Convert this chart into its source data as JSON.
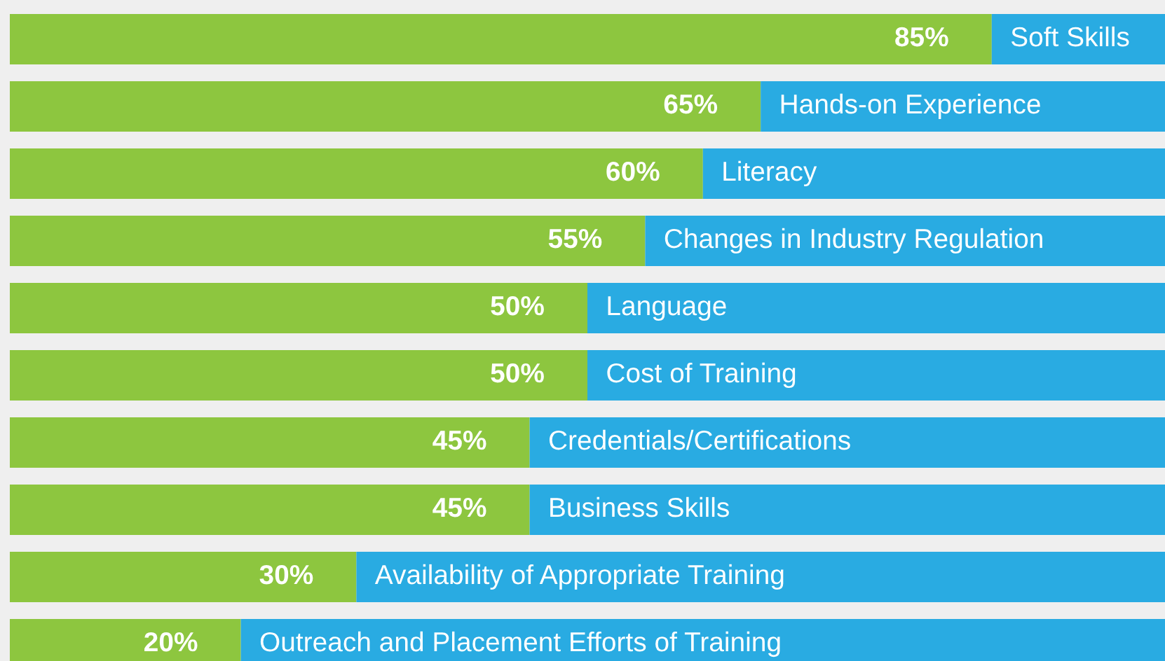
{
  "chart_data": {
    "type": "bar",
    "orientation": "horizontal",
    "stacked": true,
    "categories": [
      "Soft Skills",
      "Hands-on Experience",
      "Literacy",
      "Changes in Industry Regulation",
      "Language",
      "Cost of Training",
      "Credentials/Certifications",
      "Business Skills",
      "Availability of Appropriate Training",
      "Outreach and Placement Efforts of Training"
    ],
    "series": [
      {
        "color": "#8dc63f",
        "values": [
          85,
          65,
          60,
          55,
          50,
          50,
          45,
          45,
          30,
          20
        ],
        "value_labels": [
          "85%",
          "65%",
          "60%",
          "55%",
          "50%",
          "50%",
          "45%",
          "45%",
          "30%",
          "20%"
        ]
      },
      {
        "color": "#29abe2",
        "values": [
          15,
          35,
          40,
          45,
          50,
          50,
          55,
          55,
          70,
          80
        ]
      }
    ],
    "xlim": [
      0,
      100
    ],
    "tick_labels": false
  }
}
